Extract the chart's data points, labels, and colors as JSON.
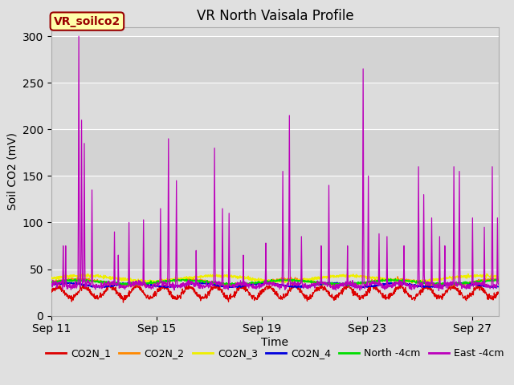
{
  "title": "VR North Vaisala Profile",
  "xlabel": "Time",
  "ylabel": "Soil CO2 (mV)",
  "ylim": [
    0,
    310
  ],
  "yticks": [
    0,
    50,
    100,
    150,
    200,
    250,
    300
  ],
  "xtick_labels": [
    "Sep 11",
    "Sep 15",
    "Sep 19",
    "Sep 23",
    "Sep 27"
  ],
  "xtick_positions": [
    0,
    4,
    8,
    12,
    16
  ],
  "fig_bg_color": "#e0e0e0",
  "plot_bg_color": "#dcdcdc",
  "band_light": "#e8e8e8",
  "band_dark": "#d4d4d4",
  "annotation_text": "VR_soilco2",
  "annotation_bg": "#ffffaa",
  "annotation_border": "#990000",
  "annotation_text_color": "#990000",
  "legend": [
    {
      "label": "CO2N_1",
      "color": "#dd0000"
    },
    {
      "label": "CO2N_2",
      "color": "#ff8800"
    },
    {
      "label": "CO2N_3",
      "color": "#eeee00"
    },
    {
      "label": "CO2N_4",
      "color": "#0000dd"
    },
    {
      "label": "North -4cm",
      "color": "#00dd00"
    },
    {
      "label": "East -4cm",
      "color": "#bb00bb"
    }
  ],
  "line_colors": {
    "CO2N_1": "#dd0000",
    "CO2N_2": "#ff8800",
    "CO2N_3": "#eeee00",
    "CO2N_4": "#0000dd",
    "North_4cm": "#00dd00",
    "East_4cm": "#bb00bb"
  },
  "grid_color": "#ffffff",
  "title_fontsize": 12,
  "axis_fontsize": 10,
  "tick_fontsize": 10,
  "legend_fontsize": 9
}
